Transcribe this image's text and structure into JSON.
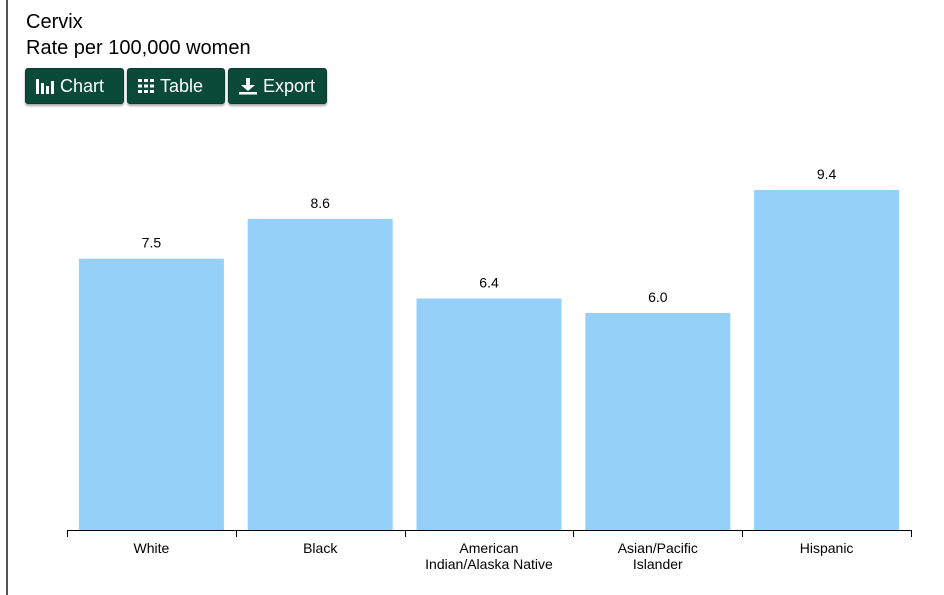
{
  "header": {
    "title": "Cervix",
    "subtitle": "Rate per 100,000 women"
  },
  "toolbar": {
    "chart_label": "Chart",
    "table_label": "Table",
    "export_label": "Export",
    "button_color": "#0c4a38"
  },
  "chart_data": {
    "type": "bar",
    "title": "Cervix",
    "subtitle": "Rate per 100,000 women",
    "categories": [
      [
        "White"
      ],
      [
        "Black"
      ],
      [
        "American",
        "Indian/Alaska Native"
      ],
      [
        "Asian/Pacific",
        "Islander"
      ],
      [
        "Hispanic"
      ]
    ],
    "values": [
      7.5,
      8.6,
      6.4,
      6.0,
      9.4
    ],
    "value_labels": [
      "7.5",
      "8.6",
      "6.4",
      "6.0",
      "9.4"
    ],
    "bar_color": "#94d0f8",
    "ylim": [
      0,
      9.4
    ],
    "grid": false,
    "legend": "none"
  }
}
